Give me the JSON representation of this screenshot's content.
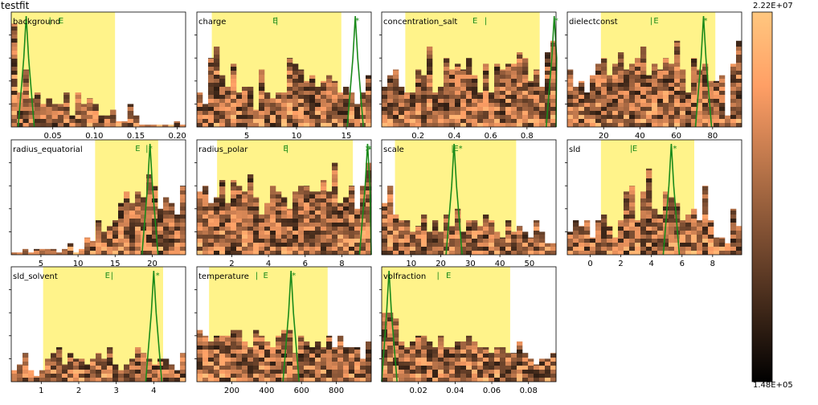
{
  "title": "testfit",
  "colors": {
    "range_fill": "#fff176",
    "fit_line": "#1a8a1a",
    "marker_text": "#1a8a1a",
    "axis": "#000000",
    "colormap": "copper"
  },
  "colorbar": {
    "max_label": "2.22E+07",
    "min_label": "1.48E+05"
  },
  "chart_data": [
    {
      "type": "heatmap",
      "name": "background",
      "ticks": [
        0.05,
        0.1,
        0.15,
        0.2
      ],
      "tick_labels": [
        "0.05",
        "0.10",
        "0.15",
        "0.20"
      ],
      "xlim": [
        0.0,
        0.21
      ],
      "range": [
        0.0,
        0.125
      ],
      "markers": [
        {
          "x": 0.045,
          "label": "|"
        },
        {
          "x": 0.057,
          "label": "E"
        }
      ],
      "best": 0.018,
      "bars": [
        0.9,
        0.3,
        0.5,
        0.25,
        0.3,
        0.2,
        0.25,
        0.2,
        0.2,
        0.3,
        0.1,
        0.3,
        0.2,
        0.25,
        0.2,
        0.1,
        0.1,
        0.15,
        0.05,
        0.05,
        0.2,
        0.1,
        0.02,
        0.02,
        0.02,
        0.02,
        0.02,
        0.02,
        0.05,
        0.02
      ]
    },
    {
      "type": "heatmap",
      "name": "charge",
      "ticks": [
        5,
        10,
        15
      ],
      "tick_labels": [
        "5",
        "10",
        "15"
      ],
      "xlim": [
        0,
        17.5
      ],
      "range": [
        1.5,
        14.5
      ],
      "markers": [
        {
          "x": 7.6,
          "label": "E"
        },
        {
          "x": 7.9,
          "label": "|"
        },
        {
          "x": 15.9,
          "label": "*"
        }
      ],
      "best": 15.9,
      "bars": [
        0.3,
        0.2,
        0.6,
        0.7,
        0.45,
        0.35,
        0.55,
        0.3,
        0.35,
        0.35,
        0.15,
        0.5,
        0.3,
        0.25,
        0.3,
        0.3,
        0.6,
        0.55,
        0.5,
        0.4,
        0.45,
        0.35,
        0.4,
        0.45,
        0.4,
        0.3,
        0.35,
        0.3,
        0.2,
        0.3,
        0.45
      ]
    },
    {
      "type": "heatmap",
      "name": "concentration_salt",
      "ticks": [
        0.2,
        0.4,
        0.6,
        0.8
      ],
      "tick_labels": [
        "0.2",
        "0.4",
        "0.6",
        "0.8"
      ],
      "xlim": [
        0.0,
        0.96
      ],
      "range": [
        0.13,
        0.87
      ],
      "markers": [
        {
          "x": 0.5,
          "label": "E"
        },
        {
          "x": 0.565,
          "label": "|"
        },
        {
          "x": 0.95,
          "label": "*"
        }
      ],
      "best": 0.95,
      "bars": [
        0.35,
        0.45,
        0.5,
        0.35,
        0.3,
        0.3,
        0.5,
        0.45,
        0.7,
        0.3,
        0.35,
        0.6,
        0.5,
        0.55,
        0.5,
        0.6,
        0.45,
        0.3,
        0.55,
        0.3,
        0.55,
        0.5,
        0.55,
        0.55,
        0.65,
        0.6,
        0.4,
        0.5,
        0.35,
        0.65,
        0.75
      ]
    },
    {
      "type": "heatmap",
      "name": "dielectconst",
      "ticks": [
        20,
        40,
        60,
        80
      ],
      "tick_labels": [
        "20",
        "40",
        "60",
        "80"
      ],
      "xlim": [
        0,
        96
      ],
      "range": [
        18.5,
        81.5
      ],
      "markers": [
        {
          "x": 45.5,
          "label": "|"
        },
        {
          "x": 47.5,
          "label": "E"
        },
        {
          "x": 75,
          "label": "*"
        }
      ],
      "best": 75,
      "bars": [
        0.5,
        0.35,
        0.4,
        0.3,
        0.45,
        0.55,
        0.6,
        0.45,
        0.55,
        0.65,
        0.5,
        0.55,
        0.6,
        0.7,
        0.45,
        0.55,
        0.5,
        0.6,
        0.55,
        0.75,
        0.5,
        0.3,
        0.6,
        0.5,
        0.55,
        0.4,
        0.4,
        0.45,
        0.1,
        0.55,
        0.75
      ]
    },
    {
      "type": "heatmap",
      "name": "radius_equatorial",
      "ticks": [
        5,
        10,
        15,
        20
      ],
      "tick_labels": [
        "5",
        "10",
        "15",
        "20"
      ],
      "xlim": [
        1,
        24.5
      ],
      "range": [
        12.3,
        20.8
      ],
      "markers": [
        {
          "x": 17.7,
          "label": "E"
        },
        {
          "x": 19.1,
          "label": "|"
        },
        {
          "x": 19.5,
          "label": "*"
        }
      ],
      "best": 19.7,
      "bars": [
        0.02,
        0.02,
        0.05,
        0.02,
        0.05,
        0.05,
        0.05,
        0.05,
        0.02,
        0.05,
        0.1,
        0.02,
        0.05,
        0.15,
        0.12,
        0.3,
        0.2,
        0.25,
        0.3,
        0.45,
        0.55,
        0.45,
        0.55,
        0.5,
        0.7,
        0.6,
        0.4,
        0.5,
        0.45,
        0.35,
        0.6
      ]
    },
    {
      "type": "heatmap",
      "name": "radius_polar",
      "ticks": [
        2,
        4,
        6,
        8
      ],
      "tick_labels": [
        "2",
        "4",
        "6",
        "8"
      ],
      "xlim": [
        0.1,
        9.6
      ],
      "range": [
        1.2,
        8.6
      ],
      "markers": [
        {
          "x": 4.8,
          "label": "E"
        },
        {
          "x": 4.95,
          "label": "|"
        },
        {
          "x": 9.25,
          "label": ">"
        },
        {
          "x": 9.4,
          "label": "*"
        }
      ],
      "best": 9.4,
      "bars": [
        0.55,
        0.6,
        0.45,
        0.5,
        0.65,
        0.45,
        0.65,
        0.6,
        0.55,
        0.7,
        0.5,
        0.35,
        0.45,
        0.6,
        0.55,
        0.5,
        0.4,
        0.55,
        0.6,
        0.6,
        0.55,
        0.55,
        0.65,
        0.55,
        0.8,
        0.45,
        0.5,
        0.6,
        0.4,
        0.6,
        0.8
      ]
    },
    {
      "type": "heatmap",
      "name": "scale",
      "ticks": [
        10,
        20,
        30,
        40,
        50
      ],
      "tick_labels": [
        "10",
        "20",
        "30",
        "40",
        "50"
      ],
      "xlim": [
        0,
        59
      ],
      "range": [
        4.5,
        45.5
      ],
      "markers": [
        {
          "x": 23.5,
          "label": "|"
        },
        {
          "x": 24.3,
          "label": "E"
        },
        {
          "x": 26.0,
          "label": "*"
        }
      ],
      "best": 24.5,
      "bars": [
        0.45,
        0.6,
        0.35,
        0.3,
        0.3,
        0.2,
        0.25,
        0.35,
        0.2,
        0.3,
        0.2,
        0.35,
        0.25,
        0.4,
        0.2,
        0.3,
        0.3,
        0.25,
        0.35,
        0.3,
        0.2,
        0.15,
        0.3,
        0.2,
        0.25,
        0.2,
        0.15,
        0.3,
        0.2,
        0.1,
        0.1
      ]
    },
    {
      "type": "heatmap",
      "name": "sld",
      "ticks": [
        0,
        2,
        4,
        6,
        8
      ],
      "tick_labels": [
        "0",
        "2",
        "4",
        "6",
        "8"
      ],
      "xlim": [
        -1.5,
        9.9
      ],
      "range": [
        0.7,
        6.8
      ],
      "markers": [
        {
          "x": 2.6,
          "label": "|"
        },
        {
          "x": 2.75,
          "label": "E"
        },
        {
          "x": 5.4,
          "label": "*"
        }
      ],
      "best": 5.3,
      "bars": [
        0.2,
        0.3,
        0.25,
        0.3,
        0.15,
        0.3,
        0.35,
        0.25,
        0.15,
        0.3,
        0.55,
        0.6,
        0.3,
        0.55,
        0.75,
        0.4,
        0.35,
        0.55,
        0.5,
        0.45,
        0.3,
        0.35,
        0.4,
        0.3,
        0.6,
        0.3,
        0.15,
        0.15,
        0.1,
        0.4,
        0.25
      ]
    },
    {
      "type": "heatmap",
      "name": "sld_solvent",
      "ticks": [
        1,
        2,
        3,
        4
      ],
      "tick_labels": [
        "1",
        "2",
        "3",
        "4"
      ],
      "xlim": [
        0.2,
        4.85
      ],
      "range": [
        1.05,
        4.25
      ],
      "markers": [
        {
          "x": 2.7,
          "label": "E"
        },
        {
          "x": 2.85,
          "label": "|"
        },
        {
          "x": 4.05,
          "label": "*"
        }
      ],
      "best": 4.0,
      "bars": [
        0.1,
        0.15,
        0.25,
        0.1,
        0.05,
        0.1,
        0.2,
        0.25,
        0.3,
        0.15,
        0.25,
        0.2,
        0.2,
        0.15,
        0.2,
        0.25,
        0.2,
        0.3,
        0.15,
        0.1,
        0.15,
        0.2,
        0.3,
        0.25,
        0.2,
        0.15,
        0.2,
        0.2,
        0.15,
        0.1,
        0.25
      ]
    },
    {
      "type": "heatmap",
      "name": "temperature",
      "ticks": [
        200,
        400,
        600,
        800
      ],
      "tick_labels": [
        "200",
        "400",
        "600",
        "800"
      ],
      "xlim": [
        0,
        1000
      ],
      "range": [
        70,
        750
      ],
      "markers": [
        {
          "x": 335,
          "label": "|"
        },
        {
          "x": 380,
          "label": "E"
        },
        {
          "x": 545,
          "label": "*"
        }
      ],
      "best": 540,
      "bars": [
        0.45,
        0.4,
        0.35,
        0.4,
        0.4,
        0.4,
        0.45,
        0.45,
        0.35,
        0.3,
        0.45,
        0.4,
        0.35,
        0.3,
        0.4,
        0.45,
        0.45,
        0.25,
        0.4,
        0.35,
        0.3,
        0.35,
        0.3,
        0.4,
        0.3,
        0.4,
        0.3,
        0.3,
        0.3,
        0.2,
        0.35
      ]
    },
    {
      "type": "heatmap",
      "name": "volfraction",
      "ticks": [
        0.02,
        0.04,
        0.06,
        0.08
      ],
      "tick_labels": [
        "0.02",
        "0.04",
        "0.06",
        "0.08"
      ],
      "xlim": [
        0.0,
        0.095
      ],
      "range": [
        0.0,
        0.07
      ],
      "markers": [
        {
          "x": 0.03,
          "label": "|"
        },
        {
          "x": 0.035,
          "label": "E"
        }
      ],
      "best": 0.004,
      "bars": [
        0.6,
        0.6,
        0.55,
        0.35,
        0.3,
        0.35,
        0.4,
        0.4,
        0.35,
        0.3,
        0.4,
        0.3,
        0.3,
        0.35,
        0.35,
        0.4,
        0.35,
        0.3,
        0.3,
        0.25,
        0.3,
        0.3,
        0.25,
        0.25,
        0.35,
        0.25,
        0.2,
        0.15,
        0.2,
        0.2,
        0.25
      ]
    }
  ]
}
